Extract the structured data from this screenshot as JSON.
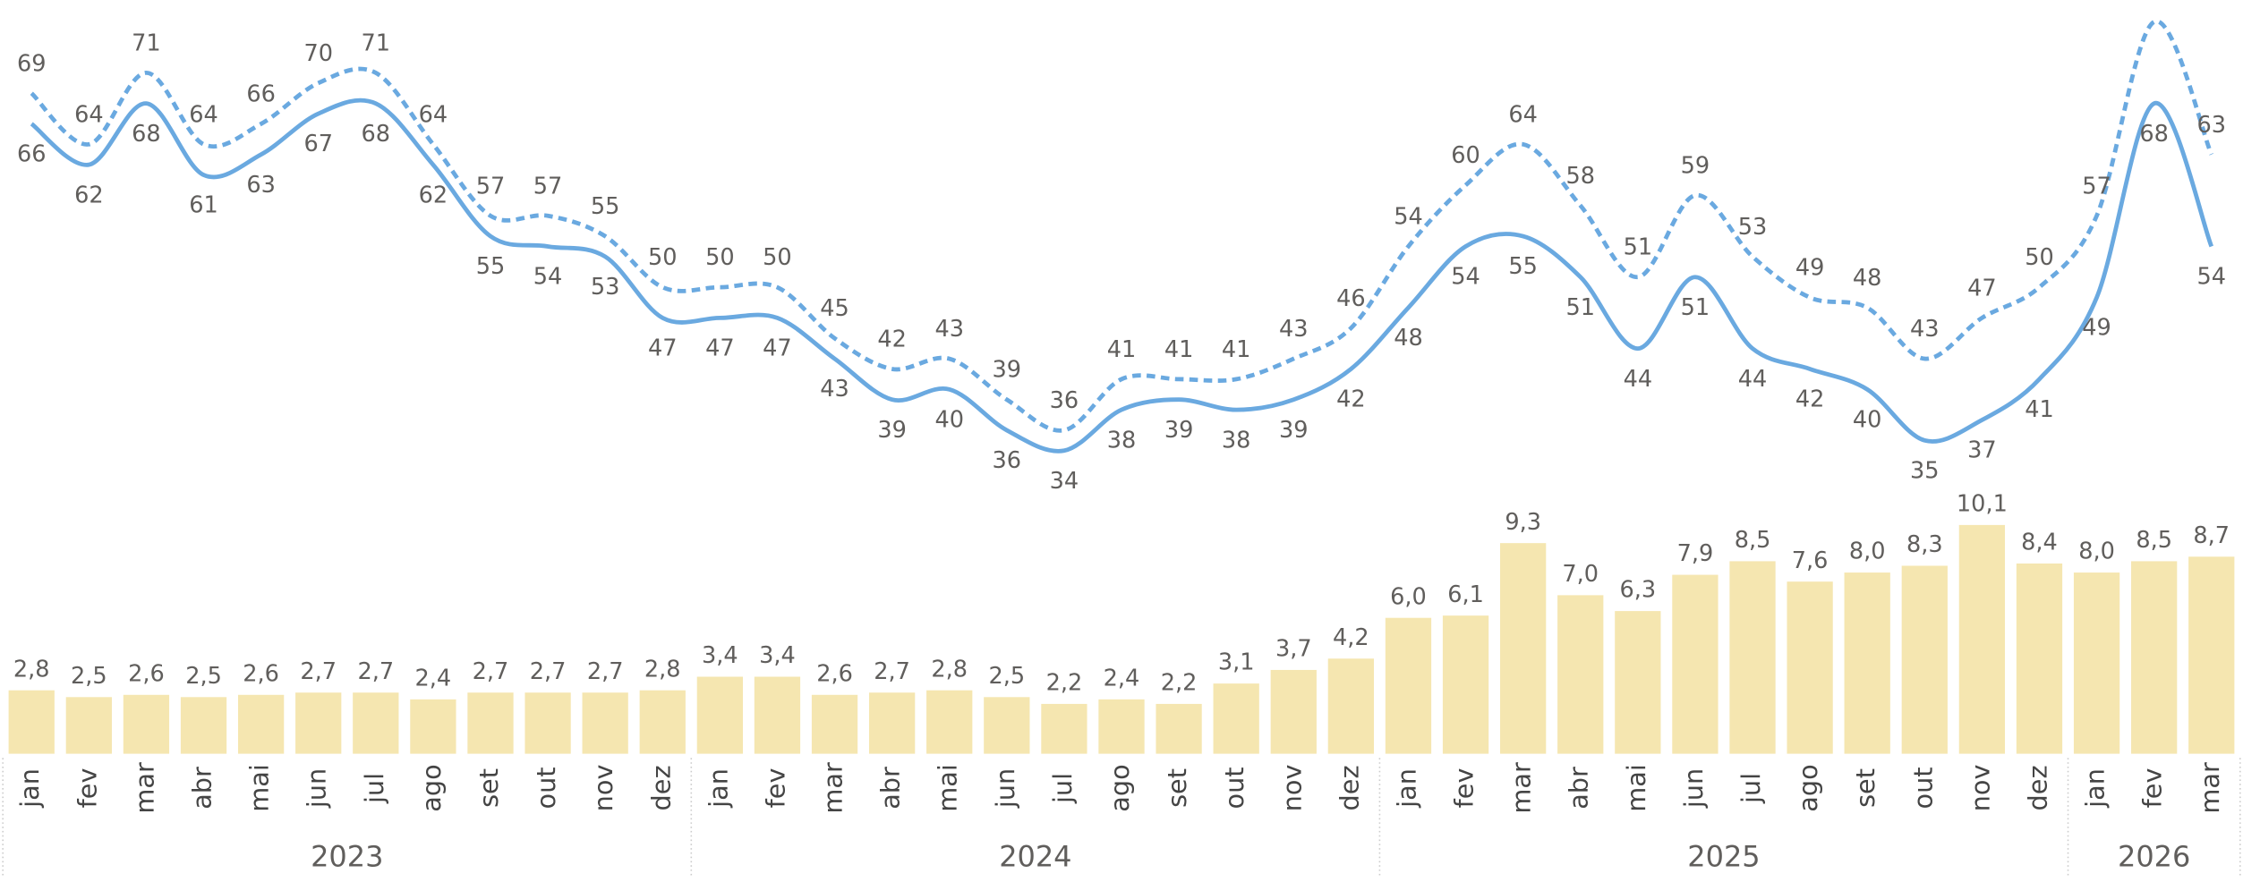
{
  "chart_data": [
    {
      "type": "line",
      "series": [
        {
          "style": "dashed",
          "color": "#6aa9e0",
          "values": [
            69,
            64,
            71,
            64,
            66,
            70,
            71,
            64,
            57,
            57,
            55,
            50,
            50,
            50,
            45,
            42,
            43,
            39,
            36,
            41,
            41,
            41,
            43,
            46,
            54,
            60,
            64,
            58,
            51,
            59,
            53,
            49,
            48,
            43,
            47,
            50,
            57,
            76,
            63
          ]
        },
        {
          "style": "solid",
          "color": "#6aa9e0",
          "values": [
            66,
            62,
            68,
            61,
            63,
            67,
            68,
            62,
            55,
            54,
            53,
            47,
            47,
            47,
            43,
            39,
            40,
            36,
            34,
            38,
            39,
            38,
            39,
            42,
            48,
            54,
            55,
            51,
            44,
            51,
            44,
            42,
            40,
            35,
            37,
            41,
            49,
            68,
            54
          ]
        }
      ]
    },
    {
      "type": "bar",
      "color": "#f5e6b0",
      "categories": [
        "jan",
        "fev",
        "mar",
        "abr",
        "mai",
        "jun",
        "jul",
        "ago",
        "set",
        "out",
        "nov",
        "dez",
        "jan",
        "fev",
        "mar",
        "abr",
        "mai",
        "jun",
        "jul",
        "ago",
        "set",
        "out",
        "nov",
        "dez",
        "jan",
        "fev",
        "mar",
        "abr",
        "mai",
        "jun",
        "jul",
        "ago",
        "set",
        "out",
        "nov",
        "dez",
        "jan",
        "fev",
        "mar"
      ],
      "years": [
        "2023",
        "2024",
        "2025",
        "2026"
      ],
      "values": [
        2.8,
        2.5,
        2.6,
        2.5,
        2.6,
        2.7,
        2.7,
        2.4,
        2.7,
        2.7,
        2.7,
        2.8,
        3.4,
        3.4,
        2.6,
        2.7,
        2.8,
        2.5,
        2.2,
        2.4,
        2.2,
        3.1,
        3.7,
        4.2,
        6.0,
        6.1,
        9.3,
        7.0,
        6.3,
        7.9,
        8.5,
        7.6,
        8.0,
        8.3,
        10.1,
        8.4,
        8.0,
        8.5,
        8.7
      ],
      "value_labels": [
        "2,8",
        "2,5",
        "2,6",
        "2,5",
        "2,6",
        "2,7",
        "2,7",
        "2,4",
        "2,7",
        "2,7",
        "2,7",
        "2,8",
        "3,4",
        "3,4",
        "2,6",
        "2,7",
        "2,8",
        "2,5",
        "2,2",
        "2,4",
        "2,2",
        "3,1",
        "3,7",
        "4,2",
        "6,0",
        "6,1",
        "9,3",
        "7,0",
        "6,3",
        "7,9",
        "8,5",
        "7,6",
        "8,0",
        "8,3",
        "10,1",
        "8,4",
        "8,0",
        "8,5",
        "8,7"
      ]
    }
  ]
}
